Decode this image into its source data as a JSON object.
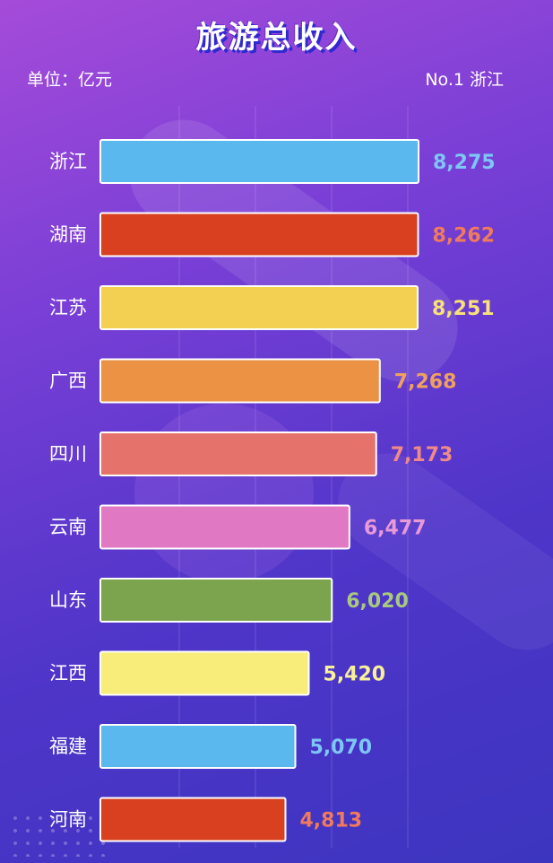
{
  "header": {
    "title": "旅游总收入",
    "unit": "单位：亿元",
    "top_rank": "No.1 浙江"
  },
  "colors": {
    "background_top": "#a54bd9",
    "background_bottom": "#3c35c0"
  },
  "chart_data": {
    "type": "bar",
    "orientation": "horizontal",
    "title": "旅游总收入",
    "unit": "单位：亿元",
    "categories": [
      "浙江",
      "湖南",
      "江苏",
      "广西",
      "四川",
      "云南",
      "山东",
      "江西",
      "福建",
      "河南"
    ],
    "values": [
      8275,
      8262,
      8251,
      7268,
      7173,
      6477,
      6020,
      5420,
      5070,
      4813
    ],
    "value_labels": [
      "8,275",
      "8,262",
      "8,251",
      "7,268",
      "7,173",
      "6,477",
      "6,020",
      "5,420",
      "5,070",
      "4,813"
    ],
    "bar_colors": [
      "#5ab8ef",
      "#d8401f",
      "#f4d052",
      "#eb9245",
      "#e6726c",
      "#e178c4",
      "#7ca44f",
      "#f8ec7a",
      "#5ab8ef",
      "#d8401f"
    ],
    "label_colors": [
      "#7ec6f5",
      "#f07a5c",
      "#f8e178",
      "#f0a15e",
      "#f08a88",
      "#e79ad6",
      "#a8c97e",
      "#f8f09a",
      "#7ec6f5",
      "#f07a5c"
    ],
    "xlim": [
      0,
      10000
    ],
    "grid": true
  }
}
